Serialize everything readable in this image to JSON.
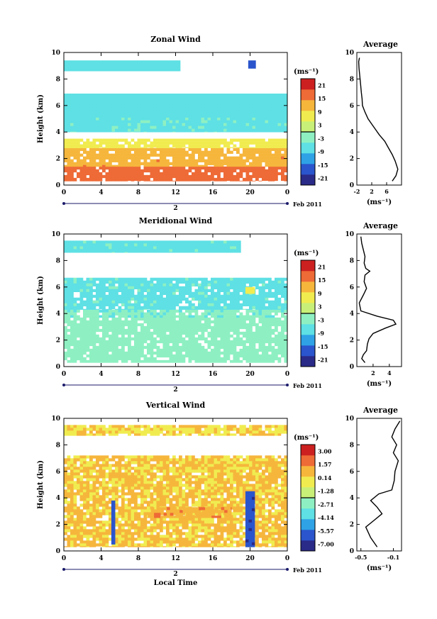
{
  "figure": {
    "date_label": "Feb 2011",
    "day_label": "2",
    "xlabel": "Local Time",
    "ylabel": "Height (km)",
    "unit": "(ms⁻¹)",
    "profile_title": "Average",
    "profile_unit": "(ms⁻¹)",
    "x_ticks": [
      "0",
      "4",
      "8",
      "12",
      "16",
      "20",
      "0"
    ],
    "y_ticks": [
      "0",
      "2",
      "4",
      "6",
      "8",
      "10"
    ]
  },
  "colors": {
    "colormap": [
      "#2a2a88",
      "#2a55cc",
      "#2fa2e6",
      "#5ee0e4",
      "#8ef0c2",
      "#c8f078",
      "#f0ec50",
      "#f6b63c",
      "#ee6a36",
      "#cc2020"
    ],
    "axis": "#000000"
  },
  "chart_data": [
    {
      "type": "heatmap",
      "title": "Zonal Wind",
      "xlabel": "",
      "ylabel": "Height (km)",
      "xlim": [
        0,
        24
      ],
      "ylim": [
        0,
        10
      ],
      "colorbar": {
        "ticks": [
          "21",
          "15",
          "9",
          "3",
          "-3",
          "-9",
          "-15",
          "-21"
        ],
        "range": [
          -24,
          24
        ]
      },
      "bands": [
        {
          "y": [
            0.3,
            1.4
          ],
          "value": 16,
          "x": [
            0,
            24
          ]
        },
        {
          "y": [
            1.4,
            2.8
          ],
          "value": 13,
          "x": [
            0,
            24
          ]
        },
        {
          "y": [
            2.8,
            3.5
          ],
          "value": 8,
          "x": [
            0,
            24
          ]
        },
        {
          "y": [
            4.0,
            5.1
          ],
          "value": -6,
          "x": [
            0,
            24
          ]
        },
        {
          "y": [
            5.1,
            6.9
          ],
          "value": -8,
          "x": [
            0,
            24
          ]
        },
        {
          "y": [
            8.6,
            9.4
          ],
          "value": -8,
          "x": [
            0,
            12.5
          ]
        },
        {
          "y": [
            8.8,
            9.4
          ],
          "value": -16,
          "x": [
            19.8,
            20.6
          ]
        }
      ],
      "profile": {
        "xlim": [
          -2,
          10
        ],
        "x_ticks": [
          "-2",
          "2",
          "6"
        ],
        "x": [
          -1.3,
          -1.5,
          -1.4,
          -1.2,
          -1.0,
          -0.8,
          -0.6,
          -0.5,
          0.2,
          1.0,
          2.0,
          3.0,
          4.0,
          5.5,
          6.5,
          7.5,
          8.3,
          9.0,
          8.5,
          7.5
        ],
        "y": [
          9.6,
          9.3,
          8.8,
          8.2,
          7.6,
          7.0,
          6.5,
          6.0,
          5.5,
          5.0,
          4.6,
          4.2,
          3.8,
          3.3,
          2.8,
          2.3,
          1.8,
          1.2,
          0.7,
          0.3
        ]
      }
    },
    {
      "type": "heatmap",
      "title": "Meridional Wind",
      "xlabel": "",
      "ylabel": "Height (km)",
      "xlim": [
        0,
        24
      ],
      "ylim": [
        0,
        10
      ],
      "colorbar": {
        "ticks": [
          "21",
          "15",
          "9",
          "3",
          "-3",
          "-9",
          "-15",
          "-21"
        ],
        "range": [
          -24,
          24
        ]
      },
      "bands": [
        {
          "y": [
            0.3,
            3.7
          ],
          "value": -3,
          "x": [
            0,
            24
          ]
        },
        {
          "y": [
            3.7,
            4.3
          ],
          "value": -4,
          "x": [
            0,
            24
          ]
        },
        {
          "y": [
            4.3,
            6.7
          ],
          "value": -6,
          "x": [
            0,
            24
          ]
        },
        {
          "y": [
            8.6,
            9.5
          ],
          "value": -6,
          "x": [
            0,
            19
          ]
        },
        {
          "y": [
            5.5,
            6.0
          ],
          "value": 8,
          "x": [
            19.5,
            20.5
          ]
        }
      ],
      "profile": {
        "xlim": [
          0,
          5.5
        ],
        "x_ticks": [
          "2",
          "4"
        ],
        "x": [
          0.5,
          0.6,
          0.8,
          1.0,
          0.9,
          1.1,
          1.6,
          1.0,
          0.9,
          1.2,
          0.8,
          0.3,
          0.5,
          2.5,
          4.5,
          4.8,
          3.5,
          2.0,
          1.5,
          1.3,
          1.2,
          0.8,
          0.6,
          1.0
        ],
        "y": [
          9.8,
          9.3,
          8.8,
          8.3,
          7.8,
          7.4,
          7.2,
          6.9,
          6.4,
          5.9,
          5.4,
          4.8,
          4.2,
          3.8,
          3.5,
          3.2,
          2.9,
          2.5,
          2.1,
          1.7,
          1.2,
          0.9,
          0.6,
          0.3
        ]
      }
    },
    {
      "type": "heatmap",
      "title": "Vertical Wind",
      "xlabel": "Local Time",
      "ylabel": "Height (km)",
      "xlim": [
        0,
        24
      ],
      "ylim": [
        0,
        10
      ],
      "colorbar": {
        "ticks": [
          "3.00",
          "1.57",
          "0.14",
          "-1.28",
          "-2.71",
          "-4.14",
          "-5.57",
          "-7.00"
        ],
        "range": [
          -7.71,
          3.71
        ]
      },
      "bands": [
        {
          "y": [
            0.3,
            7.2
          ],
          "value": 0.4,
          "x": [
            0,
            24
          ]
        },
        {
          "y": [
            2.5,
            3.3
          ],
          "value": 1.2,
          "x": [
            9,
            18
          ]
        },
        {
          "y": [
            8.7,
            9.5
          ],
          "value": 0.2,
          "x": [
            0,
            24
          ]
        },
        {
          "y": [
            0.3,
            4.5
          ],
          "value": -6.3,
          "x": [
            19.5,
            20.5
          ]
        },
        {
          "y": [
            0.5,
            3.8
          ],
          "value": -5.8,
          "x": [
            5.1,
            5.5
          ]
        }
      ],
      "profile": {
        "xlim": [
          -0.55,
          0.0
        ],
        "x_ticks": [
          "-0.5",
          "-0.1"
        ],
        "x": [
          -0.02,
          -0.08,
          -0.12,
          -0.06,
          -0.1,
          -0.04,
          -0.08,
          -0.09,
          -0.12,
          -0.28,
          -0.38,
          -0.3,
          -0.24,
          -0.34,
          -0.44,
          -0.38,
          -0.3
        ],
        "y": [
          9.8,
          9.2,
          8.6,
          8.0,
          7.4,
          6.8,
          6.0,
          5.3,
          4.6,
          4.3,
          3.8,
          3.3,
          2.8,
          2.3,
          1.8,
          1.0,
          0.3
        ]
      }
    }
  ]
}
